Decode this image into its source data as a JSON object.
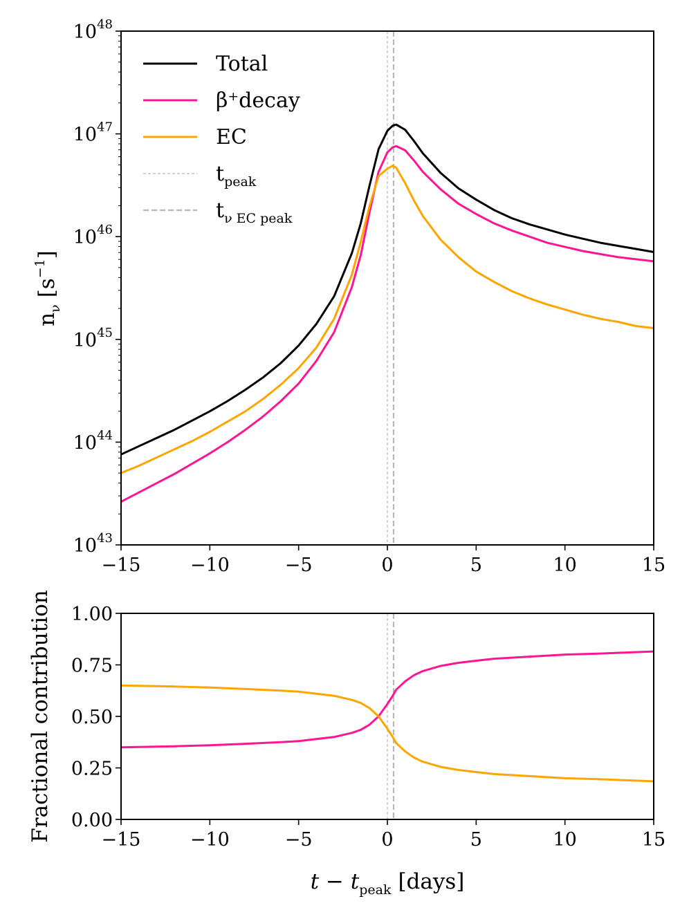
{
  "chart_data": [
    {
      "type": "line",
      "panel": "top",
      "ylabel": "n",
      "ylabel_sub": "ν",
      "ylabel_unit": "[s",
      "ylabel_unit_sup": "−1",
      "ylabel_unit_close": "]",
      "xlim": [
        -15,
        15
      ],
      "ylim_log10": [
        43,
        48
      ],
      "yscale": "log",
      "x_ticks": [
        "−15",
        "−10",
        "−5",
        "0",
        "5",
        "10",
        "15"
      ],
      "y_ticks": [
        {
          "base": "10",
          "exp": "43"
        },
        {
          "base": "10",
          "exp": "44"
        },
        {
          "base": "10",
          "exp": "45"
        },
        {
          "base": "10",
          "exp": "46"
        },
        {
          "base": "10",
          "exp": "47"
        },
        {
          "base": "10",
          "exp": "48"
        }
      ],
      "x": [
        -15,
        -14,
        -13,
        -12,
        -11,
        -10,
        -9,
        -8,
        -7,
        -6,
        -5,
        -4,
        -3,
        -2,
        -1.5,
        -1,
        -0.5,
        0,
        0.3,
        0.5,
        1,
        1.5,
        2,
        3,
        4,
        5,
        6,
        7,
        8,
        9,
        10,
        11,
        12,
        13,
        14,
        15
      ],
      "series": [
        {
          "name": "Total",
          "color": "#000000",
          "log10_values": [
            43.88,
            43.96,
            44.04,
            44.12,
            44.21,
            44.3,
            44.4,
            44.51,
            44.63,
            44.77,
            44.94,
            45.15,
            45.42,
            45.84,
            46.13,
            46.5,
            46.85,
            47.03,
            47.08,
            47.09,
            47.04,
            46.93,
            46.81,
            46.62,
            46.47,
            46.36,
            46.26,
            46.18,
            46.12,
            46.07,
            46.02,
            45.98,
            45.94,
            45.91,
            45.88,
            45.85
          ]
        },
        {
          "name": "β⁺decay",
          "color": "#ff1493",
          "log10_values": [
            43.42,
            43.51,
            43.6,
            43.69,
            43.79,
            43.89,
            44.0,
            44.12,
            44.25,
            44.4,
            44.57,
            44.79,
            45.07,
            45.51,
            45.82,
            46.24,
            46.63,
            46.82,
            46.87,
            46.88,
            46.84,
            46.74,
            46.63,
            46.46,
            46.32,
            46.22,
            46.13,
            46.06,
            46.0,
            45.94,
            45.9,
            45.86,
            45.83,
            45.8,
            45.78,
            45.76
          ]
        },
        {
          "name": "EC",
          "color": "#ffa500",
          "log10_values": [
            43.7,
            43.77,
            43.85,
            43.93,
            44.01,
            44.1,
            44.2,
            44.3,
            44.42,
            44.56,
            44.72,
            44.92,
            45.2,
            45.63,
            45.95,
            46.3,
            46.59,
            46.66,
            46.69,
            46.67,
            46.52,
            46.35,
            46.2,
            45.97,
            45.8,
            45.66,
            45.56,
            45.47,
            45.4,
            45.34,
            45.29,
            45.24,
            45.2,
            45.17,
            45.13,
            45.11
          ]
        }
      ],
      "vlines": [
        {
          "name": "t",
          "sub": "peak",
          "x": 0,
          "style": "thin-dashed",
          "color": "#b8b8b8"
        },
        {
          "name": "t",
          "sub": "ν EC peak",
          "x": 0.35,
          "style": "dashed",
          "color": "#b8b8b8"
        }
      ],
      "legend": "top-left"
    },
    {
      "type": "line",
      "panel": "bottom",
      "ylabel": "Fractional contribution",
      "xlabel": "t − t",
      "xlabel_sub": "peak",
      "xlabel_unit": "[days]",
      "xlim": [
        -15,
        15
      ],
      "ylim": [
        0,
        1
      ],
      "x_ticks": [
        "−15",
        "−10",
        "−5",
        "0",
        "5",
        "10",
        "15"
      ],
      "y_ticks": [
        "0.00",
        "0.25",
        "0.50",
        "0.75",
        "1.00"
      ],
      "x": [
        -15,
        -12,
        -10,
        -8,
        -6,
        -5,
        -4,
        -3,
        -2,
        -1.5,
        -1,
        -0.5,
        0,
        0.3,
        0.5,
        1,
        1.5,
        2,
        3,
        4,
        5,
        6,
        8,
        10,
        12,
        15
      ],
      "series": [
        {
          "name": "β⁺decay",
          "color": "#ff1493",
          "values": [
            0.35,
            0.355,
            0.36,
            0.367,
            0.375,
            0.38,
            0.39,
            0.4,
            0.42,
            0.435,
            0.46,
            0.5,
            0.56,
            0.6,
            0.63,
            0.67,
            0.7,
            0.72,
            0.745,
            0.76,
            0.77,
            0.78,
            0.79,
            0.8,
            0.805,
            0.815
          ]
        },
        {
          "name": "EC",
          "color": "#ffa500",
          "values": [
            0.65,
            0.645,
            0.64,
            0.633,
            0.625,
            0.62,
            0.61,
            0.6,
            0.58,
            0.565,
            0.54,
            0.5,
            0.44,
            0.4,
            0.37,
            0.33,
            0.3,
            0.28,
            0.255,
            0.24,
            0.23,
            0.22,
            0.21,
            0.2,
            0.195,
            0.185
          ]
        }
      ],
      "vlines": [
        {
          "x": 0,
          "style": "thin-dashed",
          "color": "#b8b8b8"
        },
        {
          "x": 0.35,
          "style": "dashed",
          "color": "#b8b8b8"
        }
      ]
    }
  ]
}
